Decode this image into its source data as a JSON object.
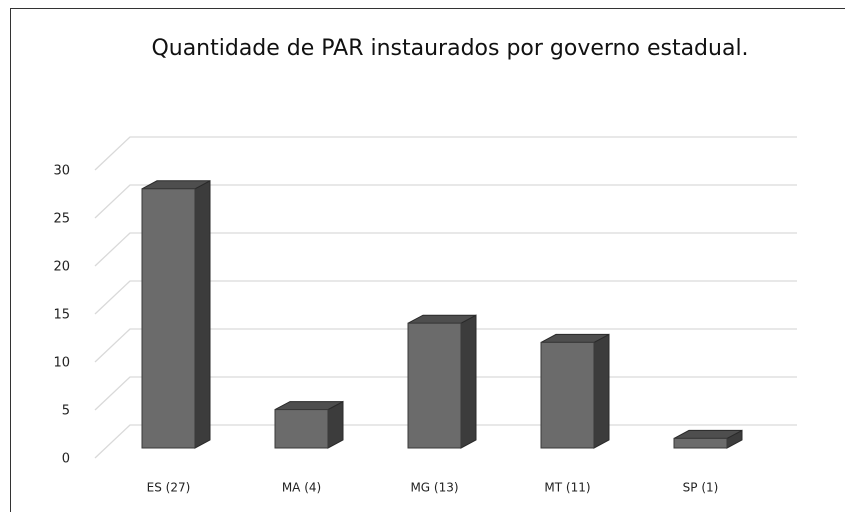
{
  "chart_data": {
    "type": "bar3d",
    "title": "Quantidade de PAR instaurados por governo estadual.",
    "categories": [
      "ES (27)",
      "MA (4)",
      "MG (13)",
      "MT (11)",
      "SP (1)"
    ],
    "values": [
      27,
      4,
      13,
      11,
      1
    ],
    "color": "#6b6b6b",
    "ylim": [
      0,
      30
    ],
    "yticks": [
      0,
      5,
      10,
      15,
      20,
      25,
      30
    ],
    "grid": true
  }
}
